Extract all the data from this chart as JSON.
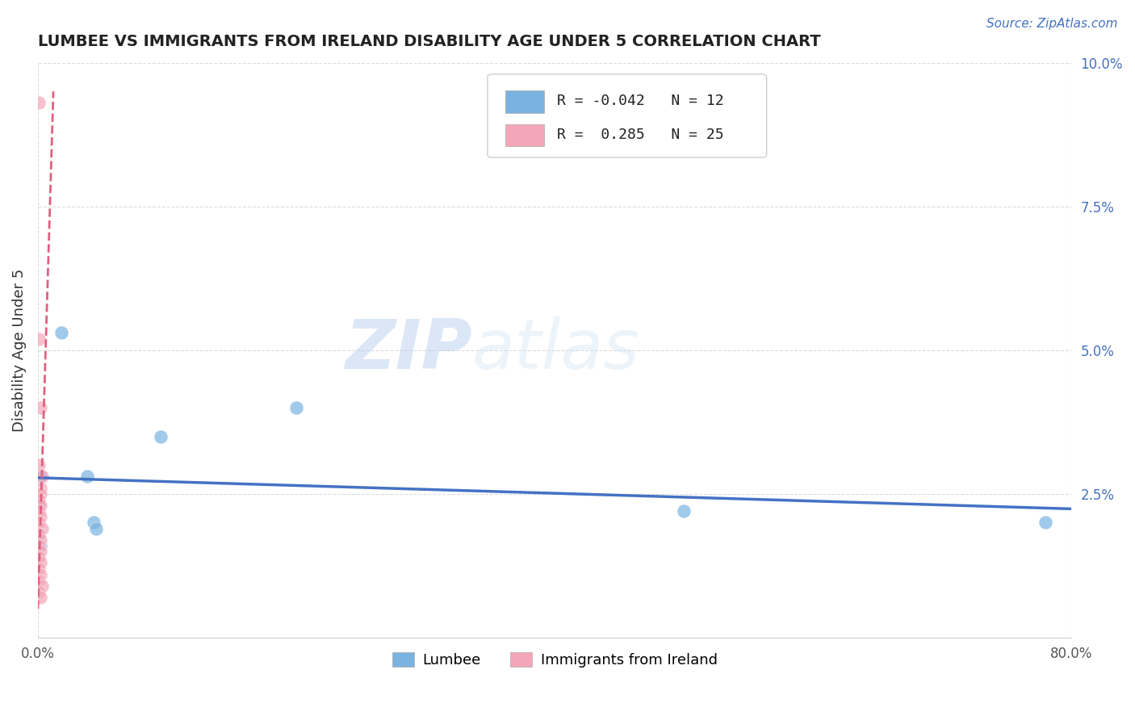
{
  "title": "LUMBEE VS IMMIGRANTS FROM IRELAND DISABILITY AGE UNDER 5 CORRELATION CHART",
  "source_text": "Source: ZipAtlas.com",
  "ylabel": "Disability Age Under 5",
  "xlim": [
    0.0,
    0.8
  ],
  "ylim": [
    0.0,
    0.1
  ],
  "xtick_labels": [
    "0.0%",
    "80.0%"
  ],
  "xtick_positions": [
    0.0,
    0.8
  ],
  "ytick_labels": [
    "2.5%",
    "5.0%",
    "7.5%",
    "10.0%"
  ],
  "ytick_positions": [
    0.025,
    0.05,
    0.075,
    0.1
  ],
  "lumbee_points": [
    [
      0.018,
      0.053
    ],
    [
      0.002,
      0.028
    ],
    [
      0.001,
      0.023
    ],
    [
      0.001,
      0.018
    ],
    [
      0.038,
      0.028
    ],
    [
      0.043,
      0.02
    ],
    [
      0.045,
      0.019
    ],
    [
      0.002,
      0.016
    ],
    [
      0.095,
      0.035
    ],
    [
      0.5,
      0.022
    ],
    [
      0.78,
      0.02
    ],
    [
      0.2,
      0.04
    ]
  ],
  "ireland_points": [
    [
      0.001,
      0.093
    ],
    [
      0.001,
      0.052
    ],
    [
      0.002,
      0.04
    ],
    [
      0.001,
      0.03
    ],
    [
      0.003,
      0.028
    ],
    [
      0.002,
      0.026
    ],
    [
      0.002,
      0.025
    ],
    [
      0.001,
      0.024
    ],
    [
      0.002,
      0.023
    ],
    [
      0.001,
      0.022
    ],
    [
      0.002,
      0.021
    ],
    [
      0.001,
      0.02
    ],
    [
      0.003,
      0.019
    ],
    [
      0.001,
      0.018
    ],
    [
      0.002,
      0.017
    ],
    [
      0.001,
      0.016
    ],
    [
      0.002,
      0.015
    ],
    [
      0.001,
      0.014
    ],
    [
      0.002,
      0.013
    ],
    [
      0.001,
      0.012
    ],
    [
      0.002,
      0.011
    ],
    [
      0.001,
      0.01
    ],
    [
      0.003,
      0.009
    ],
    [
      0.001,
      0.008
    ],
    [
      0.002,
      0.007
    ]
  ],
  "ireland_trend_x": [
    0.0,
    0.012
  ],
  "ireland_trend_y": [
    0.005,
    0.095
  ],
  "lumbee_color": "#7ab3e0",
  "ireland_color": "#f4a6b8",
  "lumbee_line_color": "#4472c4",
  "ireland_line_color": "#e06080",
  "legend_lumbee_R": "-0.042",
  "legend_lumbee_N": "12",
  "legend_ireland_R": "0.285",
  "legend_ireland_N": "25",
  "watermark_zip": "ZIP",
  "watermark_atlas": "atlas",
  "background_color": "#ffffff",
  "grid_color": "#cccccc"
}
